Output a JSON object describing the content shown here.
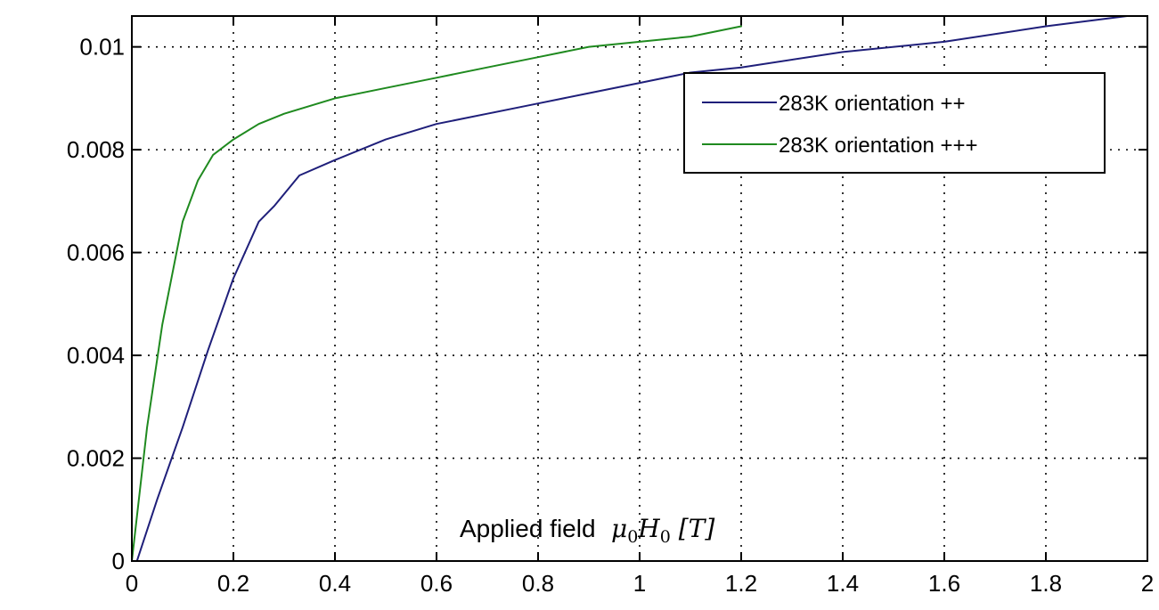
{
  "chart_data": {
    "type": "line",
    "title": "",
    "xlabel": "Applied field",
    "xlabel_math": "μ0H0 [T]",
    "ylabel": "",
    "xlim": [
      0,
      2
    ],
    "ylim": [
      0,
      0.0106
    ],
    "x_ticks": [
      0,
      0.2,
      0.4,
      0.6,
      0.8,
      1,
      1.2,
      1.4,
      1.6,
      1.8,
      2
    ],
    "x_tick_labels": [
      "0",
      "0.2",
      "0.4",
      "0.6",
      "0.8",
      "1",
      "1.2",
      "1.4",
      "1.6",
      "1.8",
      "2"
    ],
    "y_ticks": [
      0,
      0.002,
      0.004,
      0.006,
      0.008,
      0.01
    ],
    "y_tick_labels": [
      "0",
      "0.002",
      "0.004",
      "0.006",
      "0.008",
      "0.01"
    ],
    "grid": true,
    "legend_position": "top-right",
    "series": [
      {
        "name": "283K orientation ++",
        "color": "#1f1f7a",
        "x": [
          0.01,
          0.05,
          0.1,
          0.15,
          0.2,
          0.25,
          0.28,
          0.33,
          0.4,
          0.5,
          0.6,
          0.7,
          0.8,
          0.9,
          1.0,
          1.1,
          1.2,
          1.4,
          1.6,
          1.8,
          1.96
        ],
        "y": [
          0.0,
          0.0012,
          0.0026,
          0.0041,
          0.0055,
          0.0066,
          0.0069,
          0.0075,
          0.0078,
          0.0082,
          0.0085,
          0.0087,
          0.0089,
          0.0091,
          0.0093,
          0.0095,
          0.0096,
          0.0099,
          0.0101,
          0.0104,
          0.0106
        ]
      },
      {
        "name": "283K orientation +++",
        "color": "#1f8a1f",
        "x": [
          0.0,
          0.03,
          0.06,
          0.1,
          0.13,
          0.16,
          0.2,
          0.25,
          0.3,
          0.4,
          0.5,
          0.6,
          0.7,
          0.8,
          0.9,
          1.0,
          1.1,
          1.2
        ],
        "y": [
          0.0,
          0.0026,
          0.0046,
          0.0066,
          0.0074,
          0.0079,
          0.0082,
          0.0085,
          0.0087,
          0.009,
          0.0092,
          0.0094,
          0.0096,
          0.0098,
          0.01,
          0.0101,
          0.0102,
          0.0104
        ]
      }
    ]
  }
}
